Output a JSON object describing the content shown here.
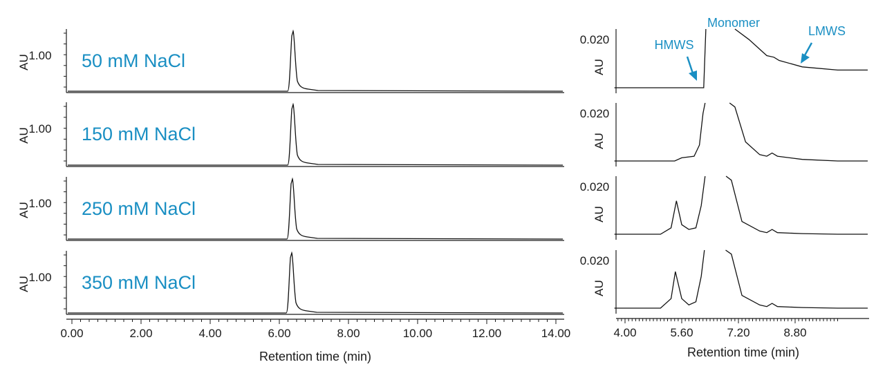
{
  "colors": {
    "accent": "#1a8fc3",
    "trace": "#111111",
    "axis": "#1a1a1a"
  },
  "chart_data": [
    {
      "type": "line",
      "panel": "left",
      "xlabel": "Retention time (min)",
      "x_ticks": [
        "0.00",
        "2.00",
        "4.00",
        "6.00",
        "8.00",
        "10.00",
        "12.00",
        "14.00"
      ],
      "xlim": [
        0,
        14.6
      ],
      "ylabel": "AU",
      "y_tick": "1.00",
      "series": [
        {
          "name": "50 mM NaCl",
          "peak_time": 6.4,
          "values": [
            [
              0,
              0.02
            ],
            [
              6.1,
              0.02
            ],
            [
              6.3,
              0.3
            ],
            [
              6.4,
              1.4
            ],
            [
              6.5,
              0.5
            ],
            [
              6.7,
              0.08
            ],
            [
              7.0,
              0.03
            ],
            [
              14.6,
              0.02
            ]
          ]
        },
        {
          "name": "150 mM NaCl",
          "peak_time": 6.4,
          "values": [
            [
              0,
              0.02
            ],
            [
              6.1,
              0.02
            ],
            [
              6.3,
              0.3
            ],
            [
              6.4,
              1.4
            ],
            [
              6.5,
              0.5
            ],
            [
              6.7,
              0.08
            ],
            [
              7.0,
              0.03
            ],
            [
              14.6,
              0.02
            ]
          ]
        },
        {
          "name": "250 mM NaCl",
          "peak_time": 6.38,
          "values": [
            [
              0,
              0.02
            ],
            [
              6.1,
              0.02
            ],
            [
              6.3,
              0.3
            ],
            [
              6.4,
              1.4
            ],
            [
              6.5,
              0.5
            ],
            [
              6.7,
              0.08
            ],
            [
              7.0,
              0.03
            ],
            [
              14.6,
              0.02
            ]
          ]
        },
        {
          "name": "350 mM NaCl",
          "peak_time": 6.36,
          "values": [
            [
              0,
              0.02
            ],
            [
              6.1,
              0.02
            ],
            [
              6.3,
              0.3
            ],
            [
              6.4,
              1.4
            ],
            [
              6.5,
              0.5
            ],
            [
              6.7,
              0.08
            ],
            [
              7.0,
              0.03
            ],
            [
              14.6,
              0.02
            ]
          ]
        }
      ]
    },
    {
      "type": "line",
      "panel": "right",
      "xlabel": "Retention time (min)",
      "x_ticks": [
        "4.00",
        "5.60",
        "7.20",
        "8.80"
      ],
      "xlim": [
        3.7,
        10.0
      ],
      "ylabel": "AU",
      "y_tick": "0.020",
      "annotations": {
        "hmws": "HMWS",
        "monomer": "Monomer",
        "lmws": "LMWS"
      },
      "series": [
        {
          "values": [
            [
              3.7,
              0.003
            ],
            [
              6.22,
              0.003
            ],
            [
              6.28,
              0.06
            ],
            [
              6.9,
              0.06
            ],
            [
              7.1,
              0.03
            ],
            [
              7.5,
              0.018
            ],
            [
              8.0,
              0.013
            ],
            [
              8.2,
              0.0125
            ],
            [
              8.35,
              0.0115
            ],
            [
              9.0,
              0.0095
            ],
            [
              10.0,
              0.0085
            ]
          ]
        },
        {
          "values": [
            [
              3.7,
              0.003
            ],
            [
              5.4,
              0.003
            ],
            [
              5.6,
              0.004
            ],
            [
              5.95,
              0.0045
            ],
            [
              6.1,
              0.008
            ],
            [
              6.2,
              0.018
            ],
            [
              6.26,
              0.06
            ],
            [
              6.95,
              0.06
            ],
            [
              7.1,
              0.02
            ],
            [
              7.4,
              0.009
            ],
            [
              7.8,
              0.005
            ],
            [
              8.0,
              0.0045
            ],
            [
              8.15,
              0.0055
            ],
            [
              8.3,
              0.0045
            ],
            [
              9.0,
              0.0035
            ],
            [
              10.0,
              0.003
            ]
          ]
        },
        {
          "values": [
            [
              3.7,
              0.003
            ],
            [
              5.0,
              0.003
            ],
            [
              5.3,
              0.005
            ],
            [
              5.45,
              0.0135
            ],
            [
              5.6,
              0.006
            ],
            [
              5.8,
              0.0045
            ],
            [
              6.0,
              0.005
            ],
            [
              6.15,
              0.012
            ],
            [
              6.26,
              0.06
            ],
            [
              6.85,
              0.06
            ],
            [
              7.0,
              0.02
            ],
            [
              7.3,
              0.007
            ],
            [
              7.8,
              0.004
            ],
            [
              8.0,
              0.0035
            ],
            [
              8.15,
              0.0045
            ],
            [
              8.3,
              0.0035
            ],
            [
              9.0,
              0.0032
            ],
            [
              10.0,
              0.003
            ]
          ]
        },
        {
          "values": [
            [
              3.7,
              0.003
            ],
            [
              5.0,
              0.003
            ],
            [
              5.3,
              0.006
            ],
            [
              5.42,
              0.0145
            ],
            [
              5.6,
              0.006
            ],
            [
              5.8,
              0.004
            ],
            [
              6.0,
              0.005
            ],
            [
              6.15,
              0.013
            ],
            [
              6.24,
              0.06
            ],
            [
              6.84,
              0.06
            ],
            [
              7.0,
              0.02
            ],
            [
              7.3,
              0.007
            ],
            [
              7.8,
              0.004
            ],
            [
              8.0,
              0.0035
            ],
            [
              8.15,
              0.0045
            ],
            [
              8.3,
              0.0035
            ],
            [
              9.0,
              0.0032
            ],
            [
              10.0,
              0.003
            ]
          ]
        }
      ]
    }
  ]
}
